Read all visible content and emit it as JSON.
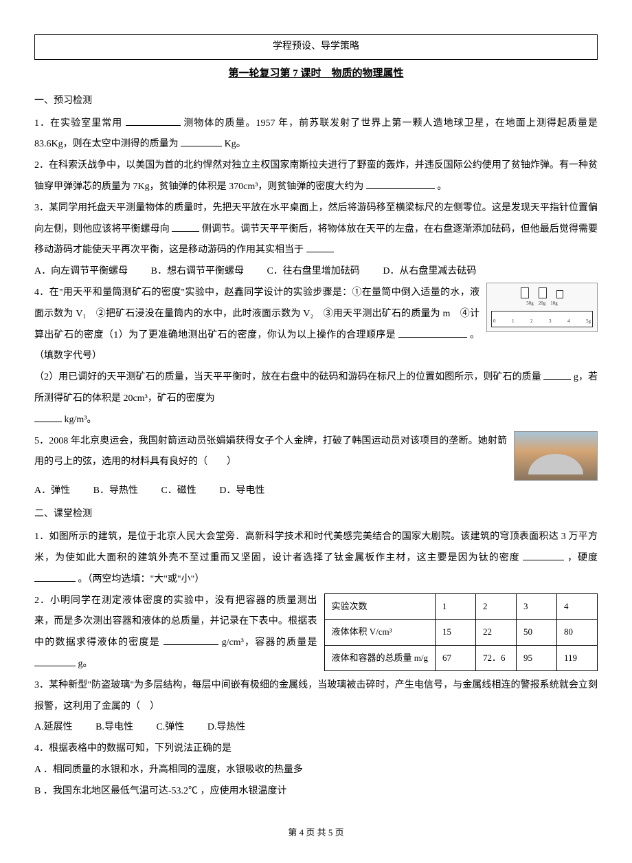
{
  "header": {
    "box_text": "学程预设、导学策略",
    "title": "第一轮复习第 7 课时　物质的物理属性"
  },
  "section1": {
    "heading": "一、预习检测",
    "q1_a": "1．在实验室里常用",
    "q1_b": "测物体的质量。1957 年，前苏联发射了世界上第一颗人造地球卫星，在地面上测得起质量是 83.6Kg，则在太空中测得的质量为",
    "q1_c": "Kg。",
    "q2_a": "2．在科索沃战争中，以美国为首的北约悍然对独立主权国家南斯拉夫进行了野蛮的轰炸，并违反国际公约使用了贫铀炸弹。有一种贫铀穿甲弹弹芯的质量为 7Kg，贫铀弹的体积是 370cm³，则贫铀弹的密度大约为",
    "q2_b": "。",
    "q3_a": "3．某同学用托盘天平测量物体的质量时，先把天平放在水平桌面上，然后将游码移至横梁标尺的左侧零位。这是发现天平指针位置偏向左侧，则他应该将平衡螺母向",
    "q3_b": "侧调节。调节天平平衡后，将物体放在天平的左盘，在右盘逐渐添加砝码，但他最后觉得需要移动游码才能使天平再次平衡，这是移动游码的作用其实相当于",
    "q3_choice_a": "A．向左调节平衡螺母",
    "q3_choice_b": "B．想右调节平衡螺母",
    "q3_choice_c": "C．往右盘里增加砝码",
    "q3_choice_d": "D．从右盘里减去砝码",
    "q4_a": "4．在\"用天平和量筒测矿石的密度\"实验中，赵鑫同学设计的实验步骤是：①在量筒中倒入适量的水，液面示数为 V₁　②把矿石浸没在量筒内的水中，此时液面示数为 V₂　③用天平测出矿石的质量为 m　④计算出矿石的密度（1）为了更准确地测出矿石的密度，你认为以上操作的合理顺序是",
    "q4_b": "。（填数字代号）",
    "q4_c": "（2）用已调好的天平测矿石的质量，当天平平衡时，放在右盘中的砝码和游码在标尺上的位置如图所示，则矿石的质量",
    "q4_d": "g，若所测得矿石的体积是 20cm³，矿石的密度为",
    "q4_e": "kg/m³。",
    "ruler_labels": "50g　20g　10g",
    "ruler_ticks": [
      "0",
      "1",
      "2",
      "3",
      "4",
      "5g"
    ],
    "q5_a": "5．2008 年北京奥运会，我国射箭运动员张娟娟获得女子个人金牌，打破了韩国运动员对该项目的垄断。她射箭用的弓上的弦，选用的材料具有良好的（　　）",
    "q5_choice_a": "A．弹性",
    "q5_choice_b": "B．导热性",
    "q5_choice_c": "C．磁性",
    "q5_choice_d": "D．导电性"
  },
  "section2": {
    "heading": "二、课堂检测",
    "q1_a": "1．如图所示的建筑，是位于北京人民大会堂旁．高新科学技术和时代美感完美结合的国家大剧院。该建筑的穹顶表面积达 3 万平方米，为使如此大面积的建筑外壳不至过重而又坚固，设计者选择了钛金属板作主材，这主要是因为钛的密度",
    "q1_b": "，硬度",
    "q1_c": "。（两空均选填：\"大\"或\"小\"）",
    "q2_a": "2．小明同学在测定液体密度的实验中，没有把容器的质量测出来，而是多次测出容器和液体的总质量，并记录在下表中。根据表中的数据求得液体的密度是",
    "q2_b": "g/cm³，容器的质量是",
    "q2_c": "g。",
    "table": {
      "headers": [
        "实验次数",
        "1",
        "2",
        "3",
        "4"
      ],
      "row1_label": "液体体积 V/cm³",
      "row1": [
        "15",
        "22",
        "50",
        "80"
      ],
      "row2_label": "液体和容器的总质量 m/g",
      "row2": [
        "67",
        "72．6",
        "95",
        "119"
      ]
    },
    "q3_a": "3．某种新型\"防盗玻璃\"为多层结构，每层中间嵌有极细的金属线，当玻璃被击碎时，产生电信号，与金属线相连的警报系统就会立刻报警，这利用了金属的（　）",
    "q3_choice_a": "A.延展性",
    "q3_choice_b": "B.导电性",
    "q3_choice_c": "C.弹性",
    "q3_choice_d": "D.导热性",
    "q4_a": "4．根据表格中的数据可知，下列说法正确的是",
    "q4_opt_a": "A ．相同质量的水银和水，升高相同的温度，水银吸收的热量多",
    "q4_opt_b": "B ．我国东北地区最低气温可达-53.2℃ ，应使用水银温度计"
  },
  "footer": "第 4 页 共 5 页"
}
